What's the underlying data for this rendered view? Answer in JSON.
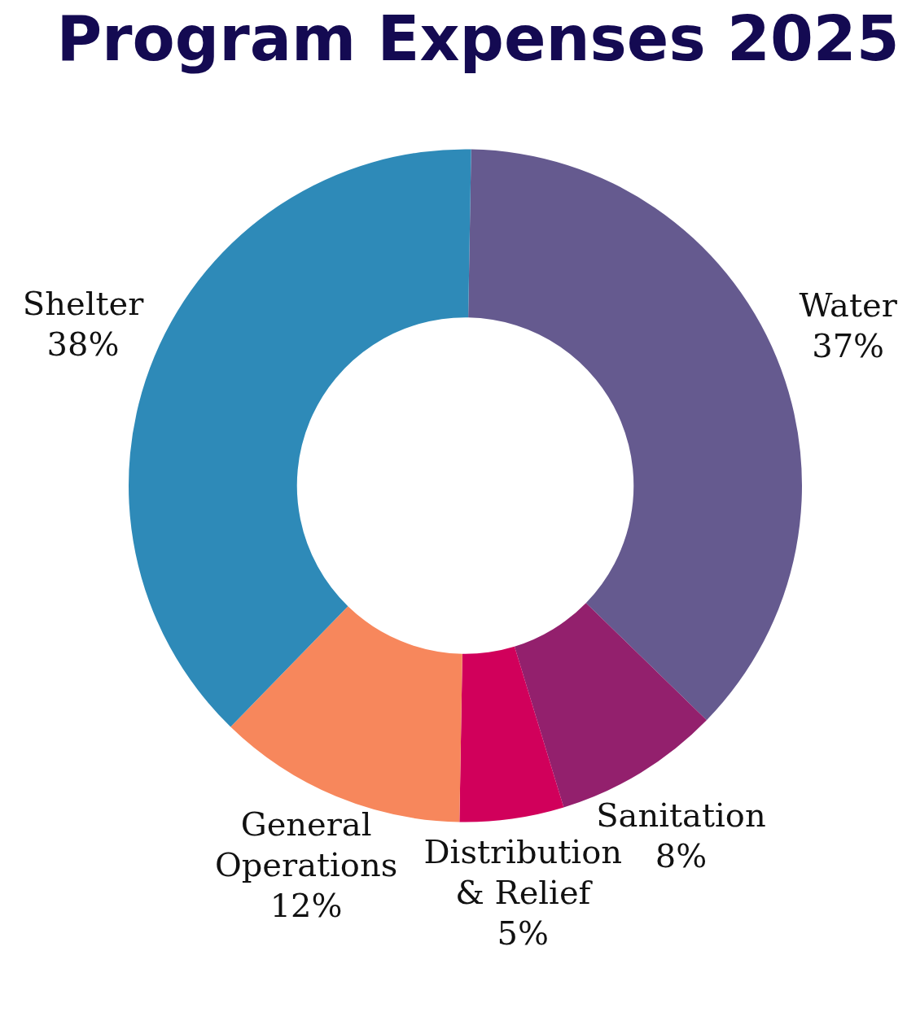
{
  "chart_data": {
    "type": "donut",
    "title": "Program Expenses 2025",
    "categories": [
      "Water",
      "Sanitation",
      "Distribution & Relief",
      "General Operations",
      "Shelter"
    ],
    "values": [
      37,
      8,
      5,
      12,
      38
    ],
    "value_labels": [
      "37%",
      "8%",
      "5%",
      "12%",
      "38%"
    ],
    "colors": [
      "#655a8f",
      "#93206d",
      "#d1005b",
      "#f7875c",
      "#2e8ab8"
    ],
    "legend": false
  }
}
